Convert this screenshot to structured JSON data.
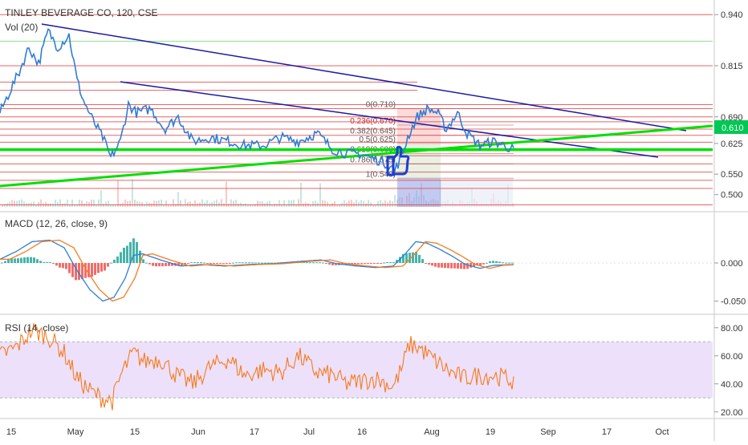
{
  "header": {
    "title": "TINLEY BEVERAGE CO, 120, CSE",
    "volume_label": "Vol (20)",
    "macd_label": "MACD (12, 26, close, 9)",
    "rsi_label": "RSI (14, close)"
  },
  "price_axis": {
    "ticks": [
      "0.940",
      "0.815",
      "0.690",
      "0.625",
      "0.550",
      "0.500"
    ],
    "current_price": "0.610",
    "current_price_color": "#00c853"
  },
  "macd_axis": {
    "ticks": [
      "0.000",
      "-0.050"
    ]
  },
  "rsi_axis": {
    "ticks": [
      "80.00",
      "60.00",
      "40.00",
      "20.00"
    ]
  },
  "time_axis": {
    "ticks": [
      "15",
      "May",
      "15",
      "Jun",
      "17",
      "Jul",
      "16",
      "Aug",
      "19",
      "Sep",
      "17",
      "Oct"
    ]
  },
  "fibonacci": {
    "labels": [
      "0(0.710)",
      "0.236(0.670)",
      "0.382(0.645)",
      "0.5(0.625)",
      "0.618(0.600)",
      "0.786(0.575)",
      "1(0.540)"
    ]
  },
  "colors": {
    "price_line": "#2e7dd7",
    "trendline": "#1a1aa6",
    "support_line": "#00e000",
    "resistance_lines": "#e24b4b",
    "macd_line": "#2e7dd7",
    "signal_line": "#f57c1f",
    "hist_up": "#26a69a",
    "hist_down": "#ef5350",
    "rsi_line": "#f57c1f",
    "rsi_band": "#ede0fb"
  },
  "icons": {
    "annotation": "thumbs-up-icon"
  },
  "chart_data": [
    {
      "type": "line",
      "title": "TINLEY BEVERAGE CO, 120, CSE",
      "xlabel": "",
      "ylabel": "",
      "x": [
        "15",
        "May",
        "15",
        "Jun",
        "17",
        "Jul",
        "16",
        "Aug",
        "19"
      ],
      "series": [
        {
          "values": [
            0.7,
            0.9,
            0.67,
            0.69,
            0.62,
            0.63,
            0.63,
            0.71,
            0.62
          ]
        }
      ],
      "ylim": [
        0.47,
        0.96
      ],
      "horizontal_levels": [
        0.94,
        0.875,
        0.815,
        0.775,
        0.755,
        0.72,
        0.71,
        0.69,
        0.678,
        0.66,
        0.645,
        0.628,
        0.61,
        0.595,
        0.575,
        0.555,
        0.535,
        0.515,
        0.475
      ],
      "fibonacci_levels": [
        0.71,
        0.67,
        0.645,
        0.625,
        0.6,
        0.575,
        0.54
      ],
      "grid": true
    },
    {
      "type": "line",
      "title": "MACD (12, 26, close, 9)",
      "ylim": [
        -0.06,
        0.04
      ],
      "x": [
        "15",
        "May",
        "15",
        "Jun",
        "17",
        "Jul",
        "16",
        "Aug",
        "19"
      ]
    },
    {
      "type": "line",
      "title": "RSI (14, close)",
      "ylim": [
        17,
        85
      ],
      "x": [
        "15",
        "May",
        "15",
        "Jun",
        "17",
        "Jul",
        "16",
        "Aug",
        "19"
      ],
      "bands": [
        30,
        70
      ]
    }
  ]
}
